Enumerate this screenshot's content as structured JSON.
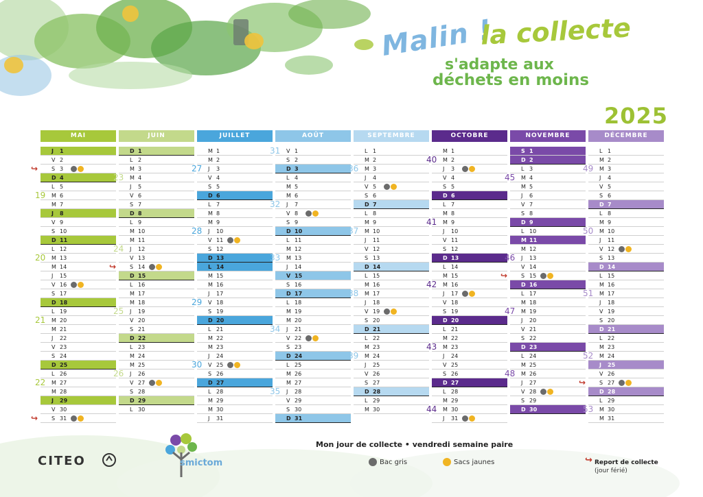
{
  "title": {
    "line1": "Malin !",
    "line2": "la collecte",
    "line3": "s'adapte aux",
    "line4": "déchets en moins"
  },
  "year": "2025",
  "colors": {
    "mai": "#a7c83b",
    "juin": "#c3d98b",
    "juillet": "#4aa6dc",
    "aout": "#8ec6e8",
    "septembre": "#b6d9f0",
    "octobre": "#5b2b8c",
    "novembre": "#7a4aa8",
    "decembre": "#a78bc9",
    "gris": "#6b6b6b",
    "jaune": "#f0b422"
  },
  "months": [
    {
      "name": "MAI",
      "color": "#a7c83b",
      "text": "#ffffff",
      "start": "J",
      "count": 31,
      "highlight": "#a7c83b",
      "weeks": [
        {
          "label": "19",
          "day": 6
        },
        {
          "label": "20",
          "day": 13
        },
        {
          "label": "21",
          "day": 20
        },
        {
          "label": "22",
          "day": 27
        }
      ],
      "collect": [
        3,
        16,
        31
      ],
      "report": [
        3,
        31
      ],
      "holidays": [
        1,
        8,
        29
      ]
    },
    {
      "name": "JUIN",
      "color": "#c3d98b",
      "text": "#ffffff",
      "start": "D",
      "count": 30,
      "highlight": "#c3d98b",
      "weeks": [
        {
          "label": "23",
          "day": 4
        },
        {
          "label": "24",
          "day": 12
        },
        {
          "label": "25",
          "day": 19
        },
        {
          "label": "26",
          "day": 26
        }
      ],
      "collect": [
        14,
        27
      ],
      "report": [
        14
      ],
      "holidays": []
    },
    {
      "name": "JUILLET",
      "color": "#4aa6dc",
      "text": "#ffffff",
      "start": "M",
      "count": 31,
      "highlight": "#4aa6dc",
      "weeks": [
        {
          "label": "27",
          "day": 3
        },
        {
          "label": "28",
          "day": 10
        },
        {
          "label": "29",
          "day": 18
        },
        {
          "label": "30",
          "day": 25
        }
      ],
      "collect": [
        11,
        25
      ],
      "report": [],
      "holidays": [
        14
      ]
    },
    {
      "name": "AOÛT",
      "color": "#8ec6e8",
      "text": "#ffffff",
      "start": "V",
      "count": 31,
      "highlight": "#8ec6e8",
      "weeks": [
        {
          "label": "31",
          "day": 1
        },
        {
          "label": "32",
          "day": 7
        },
        {
          "label": "33",
          "day": 13
        },
        {
          "label": "34",
          "day": 21
        },
        {
          "label": "35",
          "day": 28
        }
      ],
      "collect": [
        8,
        22
      ],
      "report": [],
      "holidays": [
        15
      ]
    },
    {
      "name": "SEPTEMBRE",
      "color": "#b6d9f0",
      "text": "#ffffff",
      "start": "L",
      "count": 30,
      "highlight": "#b6d9f0",
      "weeks": [
        {
          "label": "36",
          "day": 3
        },
        {
          "label": "37",
          "day": 10
        },
        {
          "label": "38",
          "day": 17
        },
        {
          "label": "39",
          "day": 24
        }
      ],
      "collect": [
        5,
        19
      ],
      "report": [],
      "holidays": []
    },
    {
      "name": "OCTOBRE",
      "color": "#5b2b8c",
      "text": "#ffffff",
      "start": "M",
      "count": 31,
      "highlight": "#5b2b8c",
      "weeks": [
        {
          "label": "40",
          "day": 2
        },
        {
          "label": "41",
          "day": 9
        },
        {
          "label": "42",
          "day": 16
        },
        {
          "label": "43",
          "day": 23
        },
        {
          "label": "44",
          "day": 30
        }
      ],
      "collect": [
        3,
        17,
        31
      ],
      "report": [],
      "holidays": []
    },
    {
      "name": "NOVEMBRE",
      "color": "#7a4aa8",
      "text": "#ffffff",
      "start": "S",
      "count": 30,
      "highlight": "#7a4aa8",
      "weeks": [
        {
          "label": "45",
          "day": 4
        },
        {
          "label": "46",
          "day": 13
        },
        {
          "label": "47",
          "day": 19
        },
        {
          "label": "48",
          "day": 26
        }
      ],
      "collect": [
        15,
        28
      ],
      "report": [
        15
      ],
      "holidays": [
        1,
        11
      ]
    },
    {
      "name": "DÉCEMBRE",
      "color": "#a78bc9",
      "text": "#ffffff",
      "start": "L",
      "count": 31,
      "highlight": "#a78bc9",
      "weeks": [
        {
          "label": "49",
          "day": 3
        },
        {
          "label": "50",
          "day": 10
        },
        {
          "label": "51",
          "day": 17
        },
        {
          "label": "52",
          "day": 24
        },
        {
          "label": "53",
          "day": 30
        }
      ],
      "collect": [
        12,
        27
      ],
      "report": [
        27
      ],
      "holidays": [
        25
      ]
    }
  ],
  "footer": {
    "citeo": "CITEO",
    "smictom": "smictom",
    "collect_day": "Mon jour de collecte • vendredi semaine paire",
    "legend_gris": "Bac gris",
    "legend_jaune": "Sacs jaunes",
    "report_label": "Report de collecte",
    "report_sub": "(jour férié)"
  }
}
